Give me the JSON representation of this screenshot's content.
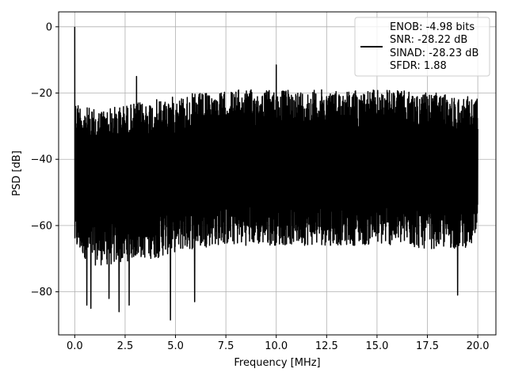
{
  "chart_data": {
    "type": "line",
    "xlabel": "Frequency [MHz]",
    "ylabel": "PSD [dB]",
    "xlim": [
      -0.8,
      20.9
    ],
    "ylim": [
      -93,
      4.5
    ],
    "xticks": [
      0.0,
      2.5,
      5.0,
      7.5,
      10.0,
      12.5,
      15.0,
      17.5,
      20.0
    ],
    "xtick_labels": [
      "0.0",
      "2.5",
      "5.0",
      "7.5",
      "10.0",
      "12.5",
      "15.0",
      "17.5",
      "20.0"
    ],
    "yticks": [
      0,
      -20,
      -40,
      -60,
      -80
    ],
    "ytick_labels": [
      "0",
      "−20",
      "−40",
      "−60",
      "−80"
    ],
    "grid": true,
    "legend_position": "top-right",
    "series": [
      {
        "name": "ENOB: -4.98 bits\nSNR: -28.22 dB\nSINAD: -28.23 dB\nSFDR: 1.88",
        "legend_lines": [
          "ENOB: -4.98 bits",
          "SNR: -28.22 dB",
          "SINAD: -28.23 dB",
          "SFDR: 1.88"
        ],
        "color": "#000000",
        "x_range": [
          0.0,
          20.0
        ],
        "noise_upper_envelope": {
          "x": [
            0.05,
            0.5,
            1.0,
            2.0,
            3.0,
            4.0,
            5.0,
            6.0,
            7.0,
            8.0,
            9.0,
            10.0,
            11.0,
            12.0,
            13.0,
            14.0,
            15.0,
            16.0,
            17.0,
            18.0,
            19.0,
            20.0
          ],
          "y": [
            -22,
            -24,
            -25,
            -24,
            -23,
            -22,
            -21,
            -20,
            -20,
            -19,
            -19,
            -19,
            -19,
            -19,
            -19,
            -19,
            -19,
            -19,
            -20,
            -20,
            -21,
            -21
          ]
        },
        "noise_lower_envelope": {
          "x": [
            0.05,
            1.0,
            2.0,
            3.0,
            4.0,
            5.0,
            6.0,
            7.0,
            8.0,
            9.0,
            10.0,
            11.0,
            12.0,
            13.0,
            14.0,
            15.0,
            16.0,
            17.0,
            18.0,
            19.0,
            20.0
          ],
          "y": [
            -64,
            -68,
            -68,
            -66,
            -66,
            -64,
            -63,
            -62,
            -62,
            -62,
            -62,
            -62,
            -62,
            -62,
            -62,
            -62,
            -62,
            -63,
            -63,
            -63,
            -62
          ]
        },
        "peaks": [
          {
            "x": 0.0,
            "y": 0
          },
          {
            "x": 3.07,
            "y": -15
          },
          {
            "x": 10.0,
            "y": -11.5
          }
        ],
        "dips": [
          {
            "x": 0.6,
            "y": -84
          },
          {
            "x": 0.8,
            "y": -85
          },
          {
            "x": 1.7,
            "y": -82
          },
          {
            "x": 2.2,
            "y": -86
          },
          {
            "x": 2.7,
            "y": -84
          },
          {
            "x": 4.75,
            "y": -88.5
          },
          {
            "x": 5.95,
            "y": -83
          },
          {
            "x": 19.0,
            "y": -81
          }
        ]
      }
    ]
  }
}
